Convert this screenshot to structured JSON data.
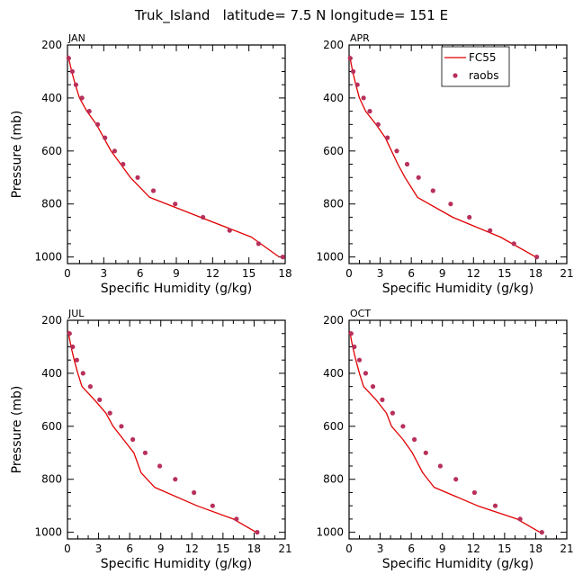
{
  "figure": {
    "title": "Truk_Island   latitude= 7.5 N longitude= 151 E",
    "colors": {
      "model": "#e00000",
      "obs": "#b8305a",
      "axis": "#000000"
    },
    "legend": {
      "placement": "top-right of APR panel",
      "entries": [
        "FC55",
        "raobs"
      ]
    }
  },
  "chart_data": [
    {
      "type": "line",
      "panel_label": "JAN",
      "xlabel": "Specific Humidity (g/kg)",
      "ylabel": "Pressure (mb)",
      "xlim": [
        0,
        18
      ],
      "ylim": [
        200,
        1025
      ],
      "y_inverted": true,
      "xticks": [
        0,
        3,
        6,
        9,
        12,
        15,
        18
      ],
      "yticks": [
        200,
        400,
        600,
        800,
        1000
      ],
      "series": [
        {
          "name": "FC55",
          "kind": "line",
          "pressure": [
            240,
            300,
            350,
            400,
            450,
            500,
            550,
            600,
            650,
            700,
            775,
            850,
            925,
            1000
          ],
          "humidity": [
            0.05,
            0.35,
            0.65,
            1.0,
            1.6,
            2.4,
            3.0,
            3.6,
            4.4,
            5.2,
            6.8,
            11.0,
            15.2,
            17.5
          ]
        },
        {
          "name": "raobs",
          "kind": "scatter",
          "pressure": [
            250,
            300,
            350,
            400,
            450,
            500,
            550,
            600,
            650,
            700,
            750,
            800,
            850,
            900,
            950,
            1000
          ],
          "humidity": [
            0.1,
            0.4,
            0.7,
            1.2,
            1.8,
            2.5,
            3.1,
            3.9,
            4.6,
            5.8,
            7.1,
            8.9,
            11.2,
            13.4,
            15.8,
            17.8
          ]
        }
      ]
    },
    {
      "type": "line",
      "panel_label": "APR",
      "xlabel": "Specific Humidity (g/kg)",
      "ylabel": "",
      "xlim": [
        0,
        21
      ],
      "ylim": [
        200,
        1025
      ],
      "y_inverted": true,
      "xticks": [
        0,
        3,
        6,
        9,
        12,
        15,
        18,
        21
      ],
      "yticks": [
        200,
        400,
        600,
        800,
        1000
      ],
      "series": [
        {
          "name": "FC55",
          "kind": "line",
          "pressure": [
            240,
            300,
            350,
            400,
            450,
            500,
            550,
            600,
            650,
            700,
            775,
            850,
            925,
            1000
          ],
          "humidity": [
            0.05,
            0.35,
            0.65,
            1.0,
            1.6,
            2.6,
            3.5,
            4.1,
            4.7,
            5.4,
            6.6,
            10.0,
            14.6,
            18.0
          ]
        },
        {
          "name": "raobs",
          "kind": "scatter",
          "pressure": [
            250,
            300,
            350,
            400,
            450,
            500,
            550,
            600,
            650,
            700,
            750,
            800,
            850,
            900,
            950,
            1000
          ],
          "humidity": [
            0.1,
            0.4,
            0.8,
            1.4,
            2.0,
            2.8,
            3.7,
            4.6,
            5.6,
            6.7,
            8.1,
            9.8,
            11.6,
            13.6,
            15.9,
            18.1
          ]
        }
      ]
    },
    {
      "type": "line",
      "panel_label": "JUL",
      "xlabel": "Specific Humidity (g/kg)",
      "ylabel": "Pressure (mb)",
      "xlim": [
        0,
        21
      ],
      "ylim": [
        200,
        1025
      ],
      "y_inverted": true,
      "xticks": [
        0,
        3,
        6,
        9,
        12,
        15,
        18,
        21
      ],
      "yticks": [
        200,
        400,
        600,
        800,
        1000
      ],
      "series": [
        {
          "name": "FC55",
          "kind": "line",
          "pressure": [
            240,
            300,
            350,
            400,
            450,
            500,
            550,
            600,
            650,
            700,
            775,
            830,
            900,
            950,
            1000
          ],
          "humidity": [
            0.05,
            0.35,
            0.65,
            1.0,
            1.4,
            2.6,
            3.7,
            4.4,
            5.4,
            6.4,
            7.1,
            8.4,
            12.5,
            16.0,
            18.2
          ]
        },
        {
          "name": "raobs",
          "kind": "scatter",
          "pressure": [
            250,
            300,
            350,
            400,
            450,
            500,
            550,
            600,
            650,
            700,
            750,
            800,
            850,
            900,
            950,
            1000
          ],
          "humidity": [
            0.2,
            0.5,
            0.9,
            1.5,
            2.2,
            3.1,
            4.1,
            5.2,
            6.3,
            7.5,
            8.9,
            10.4,
            12.2,
            14.0,
            16.3,
            18.3
          ]
        }
      ]
    },
    {
      "type": "line",
      "panel_label": "OCT",
      "xlabel": "Specific Humidity (g/kg)",
      "ylabel": "",
      "xlim": [
        0,
        21
      ],
      "ylim": [
        200,
        1025
      ],
      "y_inverted": true,
      "xticks": [
        0,
        3,
        6,
        9,
        12,
        15,
        18,
        21
      ],
      "yticks": [
        200,
        400,
        600,
        800,
        1000
      ],
      "series": [
        {
          "name": "FC55",
          "kind": "line",
          "pressure": [
            240,
            300,
            350,
            400,
            450,
            500,
            550,
            600,
            650,
            700,
            775,
            830,
            900,
            950,
            1000
          ],
          "humidity": [
            0.05,
            0.35,
            0.65,
            1.0,
            1.4,
            2.6,
            3.6,
            4.1,
            5.2,
            6.1,
            7.1,
            8.2,
            12.4,
            16.2,
            18.4
          ]
        },
        {
          "name": "raobs",
          "kind": "scatter",
          "pressure": [
            250,
            300,
            350,
            400,
            450,
            500,
            550,
            600,
            650,
            700,
            750,
            800,
            850,
            900,
            950,
            1000
          ],
          "humidity": [
            0.2,
            0.5,
            1.0,
            1.6,
            2.3,
            3.2,
            4.2,
            5.2,
            6.3,
            7.4,
            8.8,
            10.3,
            12.1,
            14.1,
            16.5,
            18.6
          ]
        }
      ]
    }
  ]
}
